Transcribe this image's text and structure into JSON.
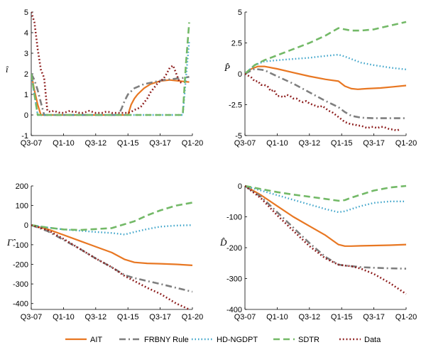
{
  "colors": {
    "AIT": "#E87722",
    "FRBNY Rule": "#7F7F7F",
    "HD-NGDPT": "#3BA3C9",
    "SDTR": "#73B967",
    "Data": "#8B1A1A"
  },
  "legend": {
    "placement": "bottom",
    "entries": [
      "AIT",
      "FRBNY Rule",
      "HD-NGDPT",
      "SDTR",
      "Data"
    ]
  },
  "chart_data": [
    {
      "type": "line",
      "ylabel": "î",
      "xticks": [
        "Q3-07",
        "Q1-10",
        "Q3-12",
        "Q1-15",
        "Q3-17",
        "Q1-20"
      ],
      "xrange": [
        0,
        50
      ],
      "ylim": [
        -1,
        5
      ],
      "yticks": [
        "5",
        "4",
        "3",
        "2",
        "1",
        "0",
        "-1"
      ],
      "ytick_values": [
        5,
        4,
        3,
        2,
        1,
        0,
        -1
      ],
      "grid": false,
      "series": [
        {
          "name": "AIT",
          "x": [
            0,
            1,
            2,
            3,
            30,
            31,
            32,
            33,
            35,
            37,
            40,
            43,
            46,
            49
          ],
          "y": [
            2,
            1.2,
            0.5,
            0,
            0,
            0.5,
            0.8,
            1.0,
            1.3,
            1.5,
            1.65,
            1.7,
            1.65,
            1.6
          ]
        },
        {
          "name": "FRBNY Rule",
          "x": [
            0,
            1,
            2,
            3,
            4,
            27,
            28,
            29,
            30,
            32,
            35,
            38,
            41,
            44,
            47,
            49
          ],
          "y": [
            2,
            1.7,
            1.2,
            0.6,
            0,
            0,
            0.3,
            0.7,
            1.0,
            1.3,
            1.5,
            1.6,
            1.7,
            1.75,
            1.8,
            1.85
          ]
        },
        {
          "name": "HD-NGDPT",
          "x": [
            0,
            1,
            2,
            47,
            48,
            49
          ],
          "y": [
            2,
            1,
            0,
            0,
            1.8,
            3.6
          ]
        },
        {
          "name": "SDTR",
          "x": [
            0,
            1,
            2,
            47,
            48,
            49
          ],
          "y": [
            2,
            1,
            0,
            0,
            2.5,
            4.5
          ]
        },
        {
          "name": "Data",
          "x": [
            0,
            1,
            2,
            3,
            4,
            5,
            6,
            7,
            8,
            9,
            10,
            11,
            12,
            13,
            14,
            15,
            16,
            17,
            18,
            19,
            20,
            21,
            22,
            23,
            24,
            25,
            26,
            27,
            28,
            29,
            30,
            31,
            32,
            33,
            34,
            35,
            36,
            37,
            38,
            39,
            40,
            41,
            42,
            43,
            44,
            45,
            46,
            47
          ],
          "y": [
            5,
            4.5,
            3.2,
            2.2,
            1.8,
            0.2,
            0.15,
            0.2,
            0.15,
            0.1,
            0.1,
            0.15,
            0.2,
            0.15,
            0.15,
            0.1,
            0.1,
            0.15,
            0.2,
            0.15,
            0.1,
            0.1,
            0.1,
            0.15,
            0.15,
            0.1,
            0.1,
            0.1,
            0.1,
            0.1,
            0.1,
            0.15,
            0.25,
            0.3,
            0.4,
            0.6,
            0.8,
            1.1,
            1.3,
            1.5,
            1.65,
            1.75,
            2.0,
            2.3,
            2.4,
            2.0,
            1.6,
            1.55
          ]
        }
      ]
    },
    {
      "type": "line",
      "ylabel": "P̂",
      "xticks": [
        "Q3-07",
        "Q1-10",
        "Q3-12",
        "Q1-15",
        "Q3-17",
        "Q1-20"
      ],
      "xrange": [
        0,
        50
      ],
      "ylim": [
        -5,
        5
      ],
      "yticks": [
        "5",
        "2.5",
        "0",
        "-2.5",
        "-5"
      ],
      "ytick_values": [
        5,
        2.5,
        0,
        -2.5,
        -5
      ],
      "grid": false,
      "series": [
        {
          "name": "AIT",
          "x": [
            0,
            2,
            4,
            6,
            10,
            15,
            20,
            25,
            29,
            31,
            33,
            35,
            38,
            42,
            46,
            50
          ],
          "y": [
            0,
            0.4,
            0.6,
            0.6,
            0.4,
            0.1,
            -0.2,
            -0.45,
            -0.6,
            -1.0,
            -1.2,
            -1.25,
            -1.2,
            -1.15,
            -1.05,
            -0.95
          ]
        },
        {
          "name": "FRBNY Rule",
          "x": [
            0,
            3,
            6,
            10,
            15,
            20,
            25,
            29,
            31,
            33,
            36,
            40,
            45,
            50
          ],
          "y": [
            0,
            0.4,
            0.3,
            -0.2,
            -0.8,
            -1.5,
            -2.2,
            -2.7,
            -3.1,
            -3.4,
            -3.55,
            -3.6,
            -3.6,
            -3.6
          ]
        },
        {
          "name": "HD-NGDPT",
          "x": [
            0,
            3,
            6,
            10,
            15,
            20,
            25,
            29,
            31,
            33,
            36,
            40,
            45,
            50
          ],
          "y": [
            0,
            0.7,
            1.0,
            1.1,
            1.2,
            1.3,
            1.45,
            1.55,
            1.4,
            1.2,
            0.9,
            0.7,
            0.5,
            0.35
          ]
        },
        {
          "name": "SDTR",
          "x": [
            0,
            3,
            6,
            10,
            15,
            20,
            25,
            29,
            31,
            33,
            36,
            40,
            45,
            50
          ],
          "y": [
            0,
            0.7,
            1.1,
            1.5,
            2.0,
            2.5,
            3.1,
            3.7,
            3.6,
            3.5,
            3.5,
            3.6,
            3.9,
            4.2
          ]
        },
        {
          "name": "Data",
          "x": [
            0,
            2,
            3,
            4,
            5,
            6,
            7,
            8,
            9,
            10,
            11,
            12,
            13,
            14,
            15,
            16,
            17,
            18,
            19,
            20,
            21,
            22,
            23,
            24,
            25,
            26,
            27,
            28,
            29,
            30,
            31,
            32,
            33,
            34,
            35,
            36,
            37,
            38,
            39,
            40,
            41,
            42,
            43,
            44,
            45,
            46,
            47,
            48
          ],
          "y": [
            0,
            -0.3,
            -0.6,
            -0.6,
            -0.9,
            -0.9,
            -1.0,
            -1.4,
            -1.3,
            -1.8,
            -1.8,
            -1.9,
            -1.7,
            -1.8,
            -2.0,
            -2.0,
            -2.2,
            -2.3,
            -2.2,
            -2.4,
            -2.5,
            -2.6,
            -2.7,
            -2.6,
            -2.8,
            -3.0,
            -3.1,
            -3.3,
            -3.5,
            -3.7,
            -3.9,
            -4.0,
            -4.1,
            -4.1,
            -4.2,
            -4.2,
            -4.3,
            -4.4,
            -4.3,
            -4.3,
            -4.4,
            -4.3,
            -4.3,
            -4.4,
            -4.5,
            -4.5,
            -4.6,
            -4.5
          ]
        }
      ]
    },
    {
      "type": "line",
      "ylabel": "Γ̂",
      "xticks": [
        "Q3-07",
        "Q1-10",
        "Q3-12",
        "Q1-15",
        "Q3-17",
        "Q1-20"
      ],
      "xrange": [
        0,
        50
      ],
      "ylim": [
        -430,
        200
      ],
      "yticks": [
        "200",
        "100",
        "0",
        "-100",
        "-200",
        "-300",
        "-400"
      ],
      "ytick_values": [
        200,
        100,
        0,
        -100,
        -200,
        -300,
        -400
      ],
      "grid": false,
      "series": [
        {
          "name": "AIT",
          "x": [
            0,
            5,
            10,
            15,
            20,
            25,
            29,
            32,
            36,
            40,
            45,
            50
          ],
          "y": [
            0,
            -20,
            -50,
            -80,
            -110,
            -140,
            -175,
            -190,
            -195,
            -197,
            -200,
            -205
          ]
        },
        {
          "name": "FRBNY Rule",
          "x": [
            0,
            5,
            10,
            15,
            20,
            25,
            29,
            32,
            36,
            40,
            45,
            50
          ],
          "y": [
            0,
            -30,
            -75,
            -120,
            -170,
            -215,
            -255,
            -270,
            -285,
            -300,
            -320,
            -340
          ]
        },
        {
          "name": "HD-NGDPT",
          "x": [
            0,
            5,
            10,
            15,
            20,
            25,
            29,
            32,
            36,
            40,
            45,
            50
          ],
          "y": [
            0,
            -12,
            -22,
            -28,
            -35,
            -40,
            -48,
            -35,
            -20,
            -8,
            -2,
            0
          ]
        },
        {
          "name": "SDTR",
          "x": [
            0,
            5,
            10,
            15,
            20,
            25,
            29,
            32,
            36,
            40,
            45,
            50
          ],
          "y": [
            0,
            -12,
            -22,
            -25,
            -20,
            -15,
            5,
            20,
            50,
            75,
            100,
            115
          ]
        },
        {
          "name": "Data",
          "x": [
            0,
            5,
            10,
            15,
            20,
            25,
            29,
            32,
            36,
            40,
            45,
            49
          ],
          "y": [
            0,
            -25,
            -70,
            -120,
            -170,
            -215,
            -260,
            -285,
            -320,
            -350,
            -400,
            -430
          ]
        }
      ]
    },
    {
      "type": "line",
      "ylabel": "D̂",
      "xticks": [
        "Q3-07",
        "Q1-10",
        "Q3-12",
        "Q1-15",
        "Q3-17",
        "Q1-20"
      ],
      "xrange": [
        0,
        50
      ],
      "ylim": [
        -400,
        0
      ],
      "yticks": [
        "0",
        "-100",
        "-200",
        "-300",
        "-400"
      ],
      "ytick_values": [
        0,
        -100,
        -200,
        -300,
        -400
      ],
      "grid": false,
      "series": [
        {
          "name": "AIT",
          "x": [
            0,
            5,
            10,
            15,
            20,
            25,
            29,
            31,
            33,
            36,
            40,
            45,
            50
          ],
          "y": [
            0,
            -30,
            -65,
            -100,
            -130,
            -160,
            -190,
            -195,
            -195,
            -194,
            -193,
            -192,
            -190
          ]
        },
        {
          "name": "FRBNY Rule",
          "x": [
            0,
            5,
            10,
            15,
            20,
            25,
            29,
            31,
            33,
            36,
            40,
            45,
            50
          ],
          "y": [
            0,
            -35,
            -85,
            -135,
            -185,
            -230,
            -255,
            -258,
            -260,
            -263,
            -265,
            -267,
            -268
          ]
        },
        {
          "name": "HD-NGDPT",
          "x": [
            0,
            5,
            10,
            15,
            20,
            25,
            29,
            31,
            33,
            36,
            40,
            45,
            50
          ],
          "y": [
            0,
            -15,
            -30,
            -45,
            -60,
            -75,
            -85,
            -82,
            -75,
            -65,
            -55,
            -50,
            -50
          ]
        },
        {
          "name": "SDTR",
          "x": [
            0,
            5,
            10,
            15,
            20,
            25,
            29,
            31,
            33,
            36,
            40,
            45,
            50
          ],
          "y": [
            0,
            -10,
            -20,
            -28,
            -35,
            -42,
            -48,
            -46,
            -38,
            -28,
            -15,
            -5,
            0
          ]
        },
        {
          "name": "Data",
          "x": [
            0,
            5,
            10,
            15,
            20,
            25,
            29,
            31,
            33,
            36,
            40,
            45,
            50
          ],
          "y": [
            0,
            -40,
            -95,
            -145,
            -195,
            -235,
            -255,
            -258,
            -260,
            -268,
            -285,
            -315,
            -350
          ]
        }
      ]
    }
  ]
}
